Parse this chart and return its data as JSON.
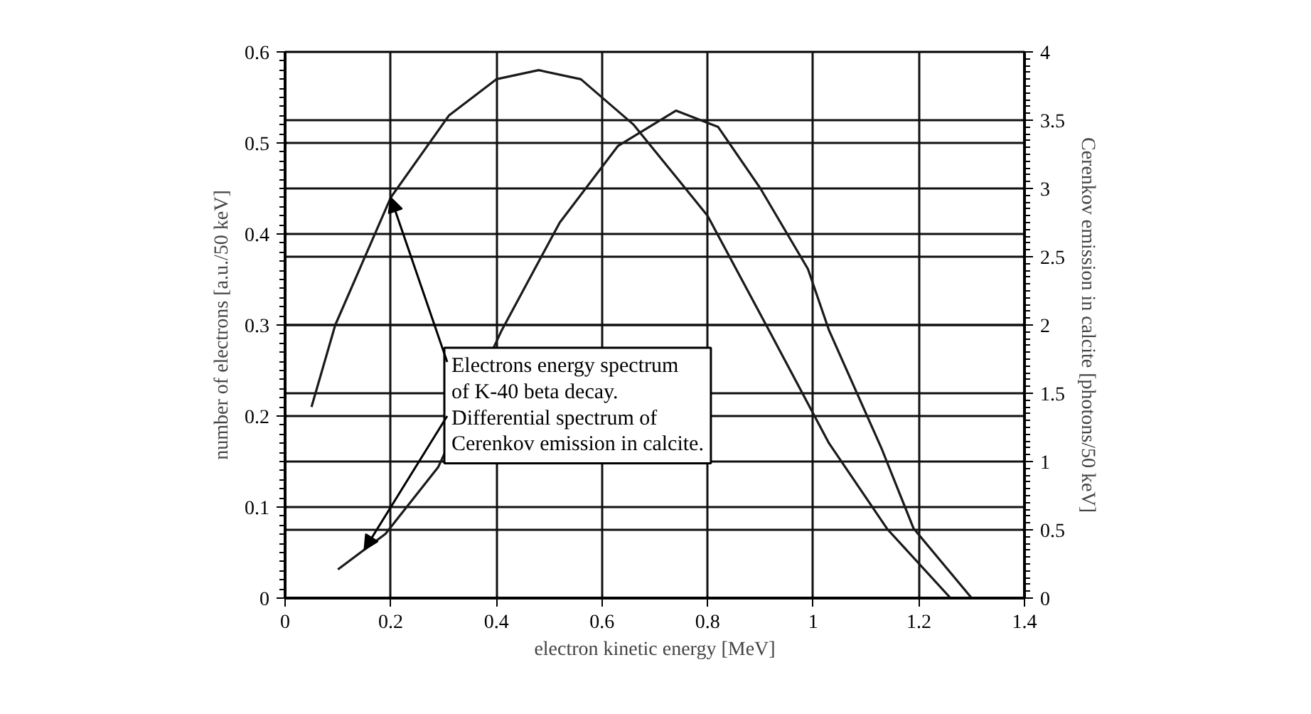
{
  "chart_data": {
    "type": "line",
    "xlabel": "electron kinetic energy [MeV]",
    "ylabel": "number of electrons [a.u./50 keV]",
    "y2label": "Cerenkov emission in calcite [photons/50 keV]",
    "xlim": [
      0,
      1.4
    ],
    "xticks": [
      0,
      0.2,
      0.4,
      0.6,
      0.8,
      1,
      1.2,
      1.4
    ],
    "ylim": [
      0,
      0.6
    ],
    "yticks": [
      0,
      0.1,
      0.2,
      0.3,
      0.4,
      0.5,
      0.6
    ],
    "y2lim": [
      0,
      4
    ],
    "y2ticks": [
      0,
      0.5,
      1,
      1.5,
      2,
      2.5,
      3,
      3.5,
      4
    ],
    "grid": true,
    "marker": "none",
    "line_style": "solid",
    "series": [
      {
        "color": "#1a1a1a",
        "x": [
          0.05,
          0.095,
          0.2,
          0.31,
          0.4,
          0.48,
          0.56,
          0.66,
          0.8,
          0.92,
          1.03,
          1.14,
          1.26
        ],
        "values": [
          0.21,
          0.3,
          0.44,
          0.53,
          0.57,
          0.58,
          0.57,
          0.52,
          0.42,
          0.29,
          0.17,
          0.076,
          0
        ]
      },
      {
        "color": "#1a1a1a",
        "axis": "y2",
        "x": [
          0.1,
          0.19,
          0.29,
          0.41,
          0.52,
          0.63,
          0.74,
          0.82,
          0.9,
          0.99,
          1.03,
          1.13,
          1.19,
          1.3
        ],
        "values": [
          0.21,
          0.47,
          0.96,
          1.96,
          2.75,
          3.31,
          3.57,
          3.45,
          3.0,
          2.41,
          1.96,
          1.09,
          0.51,
          0
        ]
      }
    ],
    "annotations": [
      {
        "text": "Electrons energy spectrum\nof K-40 beta decay.",
        "x": 0.2,
        "y": 0.44
      },
      {
        "text": "Differential spectrum of\nCerenkov emission in calcite.",
        "x": 0.15,
        "y": 0.053
      }
    ]
  }
}
